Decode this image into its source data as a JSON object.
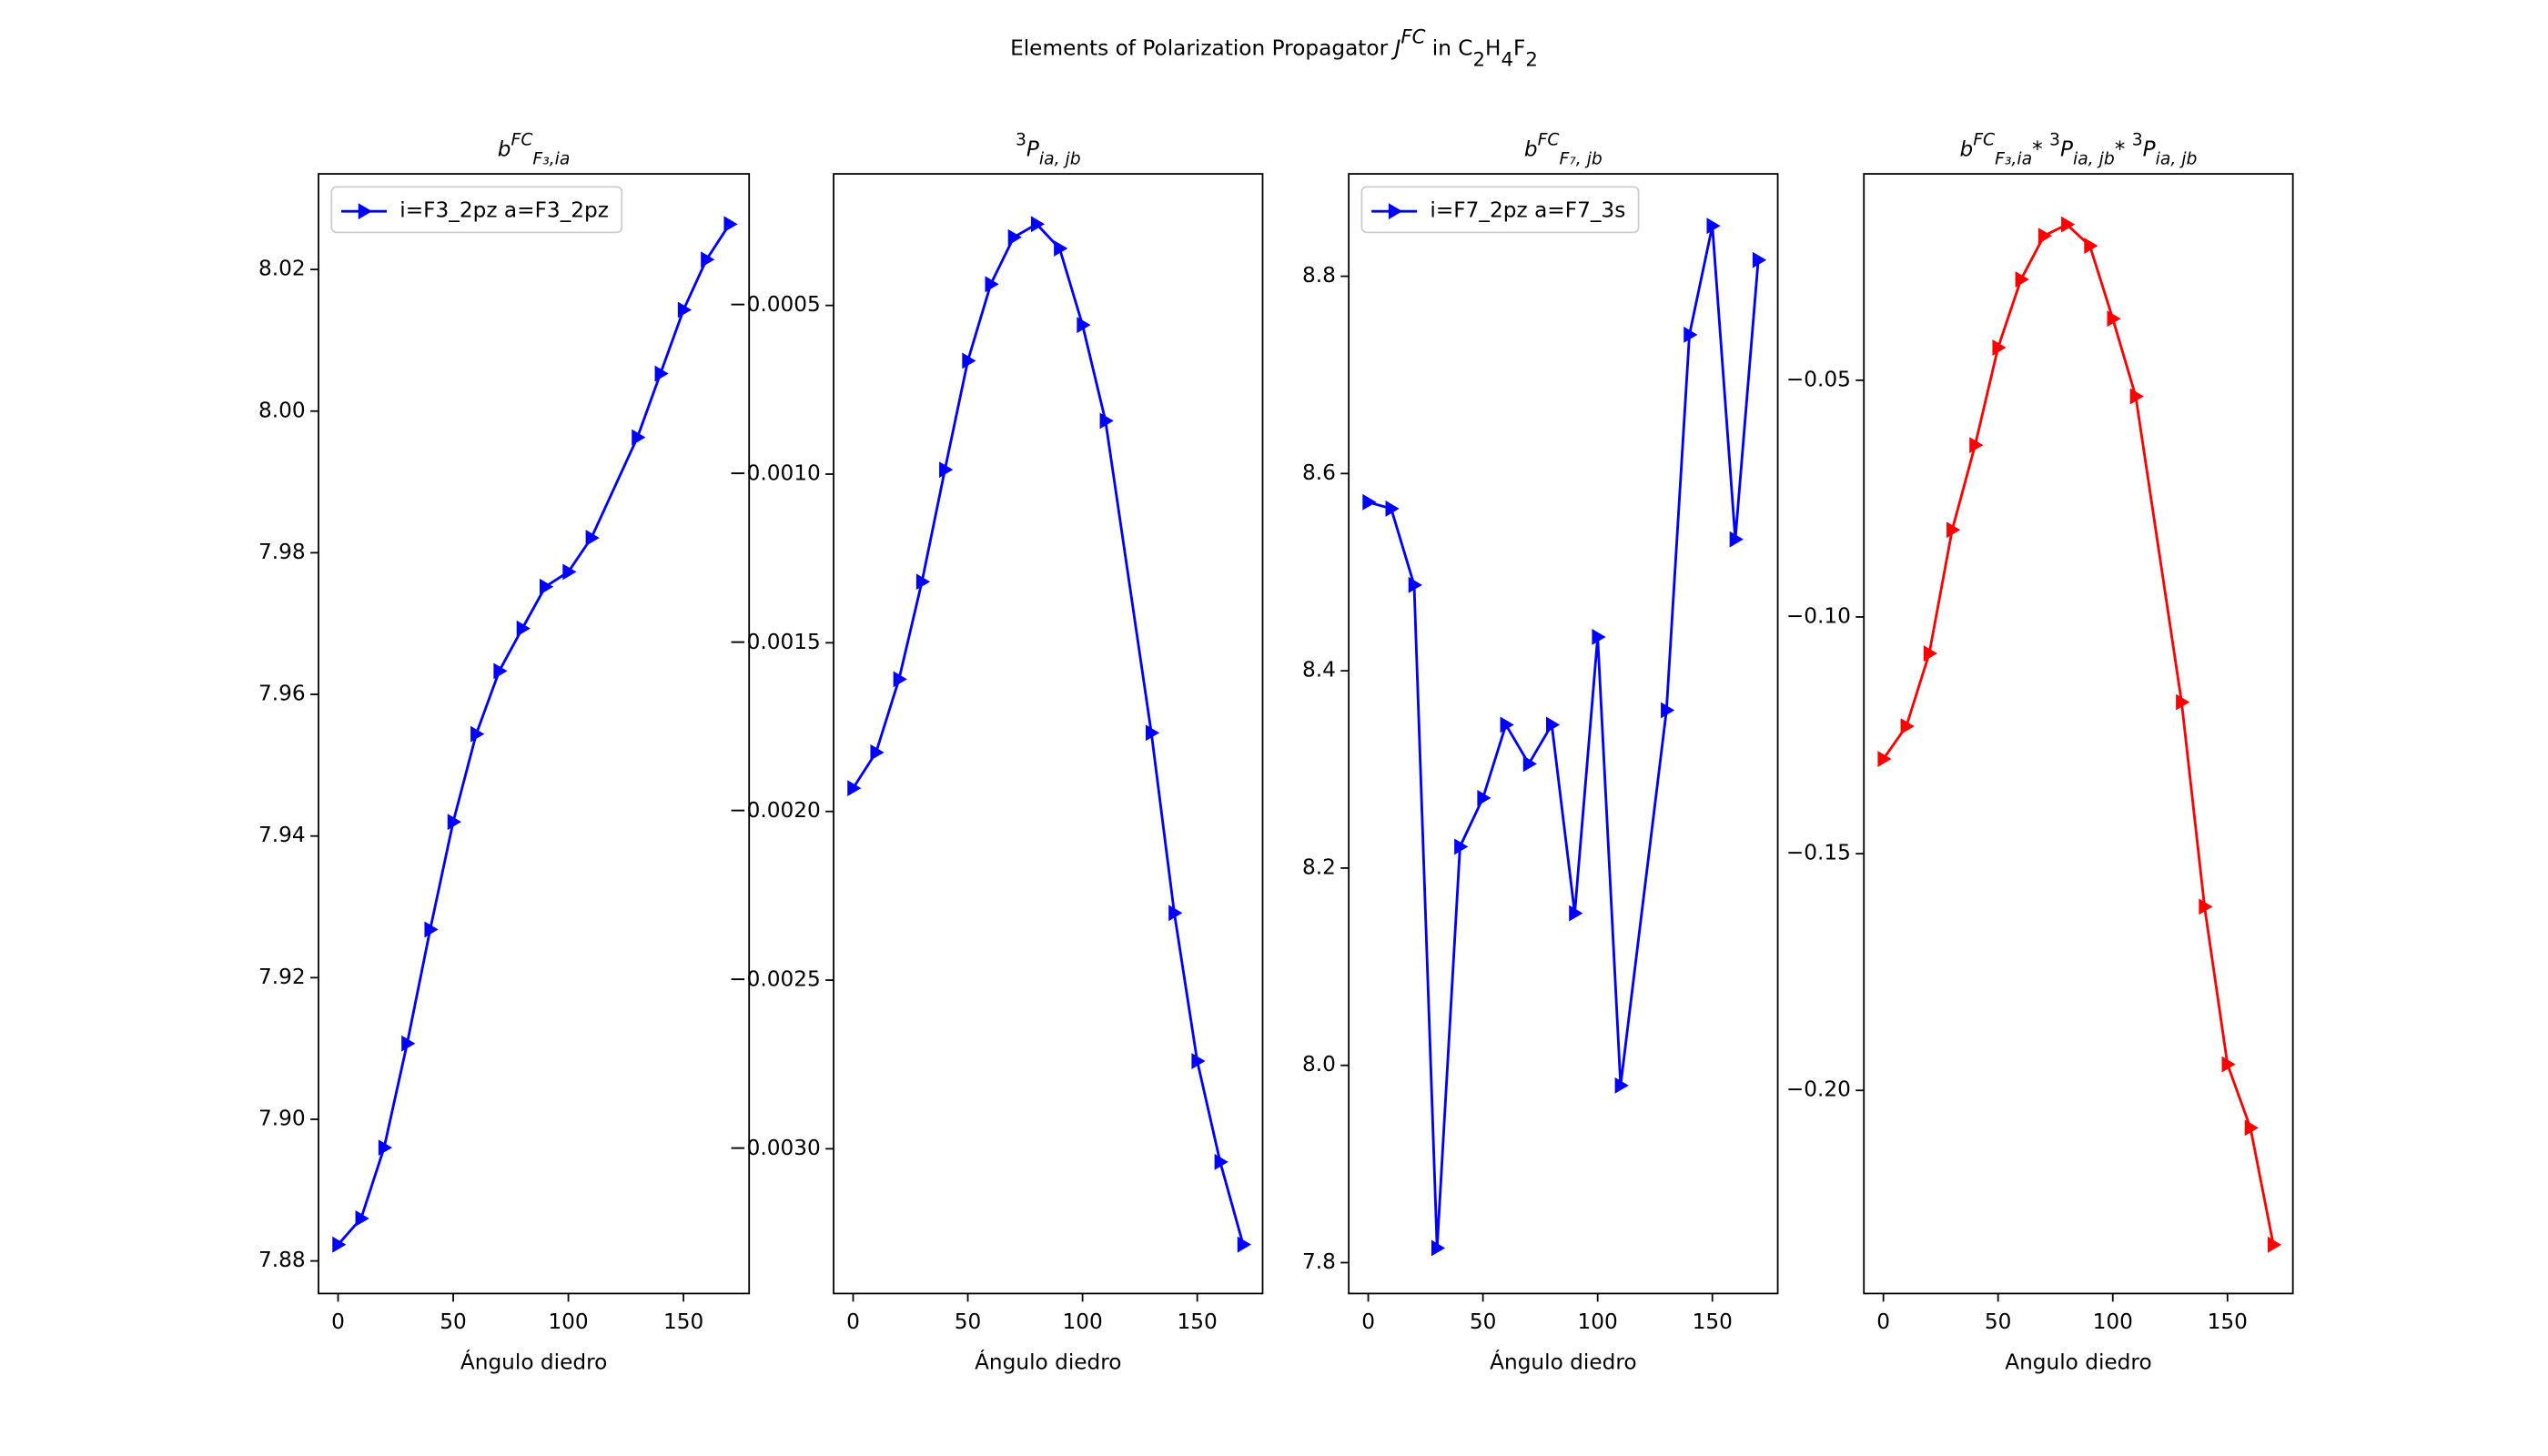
{
  "title": [
    {
      "text": "Elements of Polarization Propagator "
    },
    {
      "text": "J",
      "style": "italic"
    },
    {
      "text": "FC",
      "shift": "super",
      "style": "italic"
    },
    {
      "text": " in C"
    },
    {
      "text": "2",
      "shift": "sub"
    },
    {
      "text": "H"
    },
    {
      "text": "4",
      "shift": "sub"
    },
    {
      "text": "F"
    },
    {
      "text": "2",
      "shift": "sub"
    }
  ],
  "chart_data": [
    {
      "type": "line",
      "title": [
        {
          "text": "b",
          "style": "italic"
        },
        {
          "text": "FC",
          "shift": "super",
          "style": "italic"
        },
        {
          "text": "F₃,ia",
          "shift": "sub",
          "style": "italic"
        }
      ],
      "x_label": "Ángulo diedro",
      "x": [
        0,
        10,
        20,
        30,
        40,
        50,
        60,
        70,
        80,
        90,
        100,
        110,
        130,
        140,
        150,
        160,
        170
      ],
      "series": [
        {
          "name": "i=F3_2pz a=F3_2pz",
          "color": "#0000ff",
          "marker": "triangle-right",
          "values": [
            7.8823,
            7.886,
            7.896,
            7.9107,
            7.9268,
            7.942,
            7.9544,
            7.9633,
            7.9693,
            7.9752,
            7.9773,
            7.9821,
            7.9963,
            8.0053,
            8.0143,
            8.0214,
            8.0264
          ]
        }
      ],
      "xlim": [
        -8.5,
        178.5
      ],
      "xticks": [
        0,
        50,
        100,
        150
      ],
      "ylim": [
        7.8754,
        8.0335
      ],
      "yticks": [
        7.88,
        {
          "value": 7.9,
          "label": "7.90"
        },
        7.92,
        7.94,
        7.96,
        7.98,
        {
          "value": 8,
          "label": "8.00"
        },
        8.02
      ],
      "legend": "upper left"
    },
    {
      "type": "line",
      "title": [
        {
          "text": "3",
          "shift": "super"
        },
        {
          "text": "P",
          "style": "italic"
        },
        {
          "text": "ia, jb",
          "shift": "sub",
          "style": "italic"
        }
      ],
      "x_label": "Ángulo diedro",
      "x": [
        0,
        10,
        20,
        30,
        40,
        50,
        60,
        70,
        80,
        90,
        100,
        110,
        130,
        140,
        150,
        160,
        170
      ],
      "series": [
        {
          "color": "#0000ff",
          "marker": "triangle-right",
          "values": [
            -0.001931,
            -0.001825,
            -0.001608,
            -0.001319,
            -0.000987,
            -0.000664,
            -0.000437,
            -0.000298,
            -0.000259,
            -0.000331,
            -0.000558,
            -0.000842,
            -0.001767,
            -0.002301,
            -0.00274,
            -0.003039,
            -0.003284
          ]
        }
      ],
      "xlim": [
        -8.5,
        178.5
      ],
      "xticks": [
        0,
        50,
        100,
        150
      ],
      "ylim": [
        -0.003429,
        -0.00011
      ],
      "yticks": [
        {
          "value": -0.003,
          "label": "−0.0030"
        },
        {
          "value": -0.0025,
          "label": "−0.0025"
        },
        {
          "value": -0.002,
          "label": "−0.0020"
        },
        {
          "value": -0.0015,
          "label": "−0.0015"
        },
        {
          "value": -0.001,
          "label": "−0.0010"
        },
        {
          "value": -0.0005,
          "label": "−0.0005"
        }
      ]
    },
    {
      "type": "line",
      "title": [
        {
          "text": "b",
          "style": "italic"
        },
        {
          "text": "FC",
          "shift": "super",
          "style": "italic"
        },
        {
          "text": "F₇, jb",
          "shift": "sub",
          "style": "italic"
        }
      ],
      "x_label": "Ángulo diedro",
      "x": [
        0,
        10,
        20,
        30,
        40,
        50,
        60,
        70,
        80,
        90,
        100,
        110,
        130,
        140,
        150,
        160,
        170
      ],
      "series": [
        {
          "name": "i=F7_2pz a=F7_3s",
          "color": "#0000ff",
          "marker": "triangle-right",
          "values": [
            8.571,
            8.5644,
            8.487,
            7.8148,
            8.2217,
            8.2711,
            8.3453,
            8.3057,
            8.3453,
            8.1542,
            8.4343,
            7.9796,
            8.36,
            8.7407,
            8.8511,
            8.5333,
            8.8165
          ]
        }
      ],
      "xlim": [
        -8.5,
        178.5
      ],
      "xticks": [
        0,
        50,
        100,
        150
      ],
      "ylim": [
        7.7687,
        8.9038
      ],
      "yticks": [
        7.8,
        {
          "value": 8,
          "label": "8.0"
        },
        8.2,
        8.4,
        8.6,
        8.8
      ],
      "legend": "upper left"
    },
    {
      "type": "line",
      "title": [
        {
          "text": "b",
          "style": "italic"
        },
        {
          "text": "FC",
          "shift": "super",
          "style": "italic"
        },
        {
          "text": "F₃,ia",
          "shift": "sub",
          "style": "italic"
        },
        {
          "text": "* "
        },
        {
          "text": "3",
          "shift": "super"
        },
        {
          "text": "P",
          "style": "italic"
        },
        {
          "text": "ia, jb",
          "shift": "sub",
          "style": "italic"
        },
        {
          "text": "* "
        },
        {
          "text": "3",
          "shift": "super"
        },
        {
          "text": "P",
          "style": "italic"
        },
        {
          "text": "ia, jb",
          "shift": "sub",
          "style": "italic"
        }
      ],
      "x_label": "Angulo diedro",
      "x": [
        0,
        10,
        20,
        30,
        40,
        50,
        60,
        70,
        80,
        90,
        100,
        110,
        130,
        140,
        150,
        160,
        170
      ],
      "series": [
        {
          "color": "#ff0000",
          "marker": "triangle-right",
          "values": [
            -0.13,
            -0.1231,
            -0.1077,
            -0.0816,
            -0.0637,
            -0.0431,
            -0.0287,
            -0.0195,
            -0.0171,
            -0.0216,
            -0.037,
            -0.0534,
            -0.118,
            -0.1612,
            -0.1945,
            -0.2079,
            -0.2326
          ]
        }
      ],
      "xlim": [
        -8.5,
        178.5
      ],
      "xticks": [
        0,
        50,
        100,
        150
      ],
      "ylim": [
        -0.2429,
        -0.00641
      ],
      "yticks": [
        {
          "value": -0.2,
          "label": "−0.20"
        },
        {
          "value": -0.15,
          "label": "−0.15"
        },
        {
          "value": -0.1,
          "label": "−0.10"
        },
        {
          "value": -0.05,
          "label": "−0.05"
        }
      ]
    }
  ]
}
